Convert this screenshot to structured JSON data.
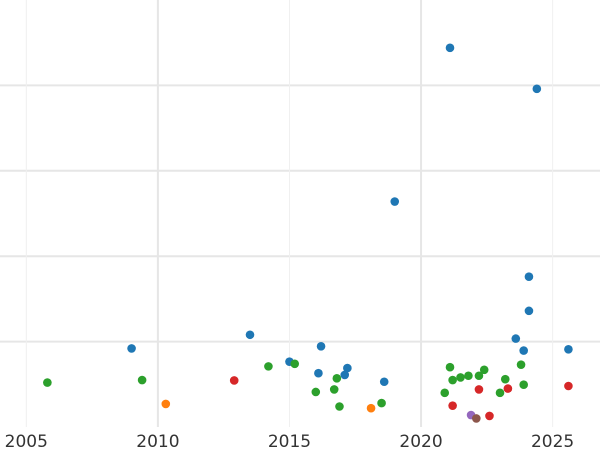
{
  "chart_data": {
    "type": "scatter",
    "title": "",
    "xlabel": "",
    "ylabel": "",
    "xlim": [
      2004.0,
      2026.8
    ],
    "ylim": [
      0,
      100
    ],
    "grid": true,
    "x_ticks": [
      2005,
      2010,
      2015,
      2020,
      2025
    ],
    "x_tick_labels": [
      "2005",
      "2010",
      "2015",
      "2020",
      "2025"
    ],
    "y_gridlines": [
      20,
      40,
      60,
      80
    ],
    "x_minor_gridlines": [
      2005,
      2015,
      2025
    ],
    "x_major_gridlines": [
      2010,
      2020
    ],
    "series": [
      {
        "color": "#1f77b4",
        "points": [
          [
            2009.0,
            18.4
          ],
          [
            2013.5,
            21.6
          ],
          [
            2015.0,
            15.3
          ],
          [
            2016.1,
            12.6
          ],
          [
            2016.2,
            18.9
          ],
          [
            2017.1,
            12.2
          ],
          [
            2017.2,
            13.8
          ],
          [
            2018.6,
            10.6
          ],
          [
            2019.0,
            52.8
          ],
          [
            2021.1,
            88.8
          ],
          [
            2023.6,
            20.7
          ],
          [
            2023.9,
            17.9
          ],
          [
            2024.1,
            35.2
          ],
          [
            2024.1,
            27.2
          ],
          [
            2024.4,
            79.2
          ],
          [
            2025.6,
            18.2
          ]
        ]
      },
      {
        "color": "#2ca02c",
        "points": [
          [
            2005.8,
            10.4
          ],
          [
            2009.4,
            11.0
          ],
          [
            2014.2,
            14.2
          ],
          [
            2015.2,
            14.8
          ],
          [
            2016.0,
            8.2
          ],
          [
            2016.7,
            8.8
          ],
          [
            2016.8,
            11.4
          ],
          [
            2016.9,
            4.8
          ],
          [
            2018.5,
            5.6
          ],
          [
            2020.9,
            8.0
          ],
          [
            2021.1,
            14.0
          ],
          [
            2021.2,
            11.0
          ],
          [
            2021.5,
            11.6
          ],
          [
            2021.8,
            12.0
          ],
          [
            2022.2,
            12.0
          ],
          [
            2022.4,
            13.4
          ],
          [
            2023.0,
            8.0
          ],
          [
            2023.2,
            11.2
          ],
          [
            2023.8,
            14.6
          ],
          [
            2023.9,
            9.9
          ]
        ]
      },
      {
        "color": "#ff7f0e",
        "points": [
          [
            2010.3,
            5.4
          ],
          [
            2018.1,
            4.4
          ]
        ]
      },
      {
        "color": "#d62728",
        "points": [
          [
            2012.9,
            10.9
          ],
          [
            2021.2,
            5.0
          ],
          [
            2022.2,
            8.8
          ],
          [
            2022.6,
            2.6
          ],
          [
            2023.3,
            9.0
          ],
          [
            2025.6,
            9.6
          ]
        ]
      },
      {
        "color": "#9467bd",
        "points": [
          [
            2021.9,
            2.8
          ]
        ]
      },
      {
        "color": "#8c564b",
        "points": [
          [
            2022.1,
            2.0
          ]
        ]
      }
    ]
  }
}
